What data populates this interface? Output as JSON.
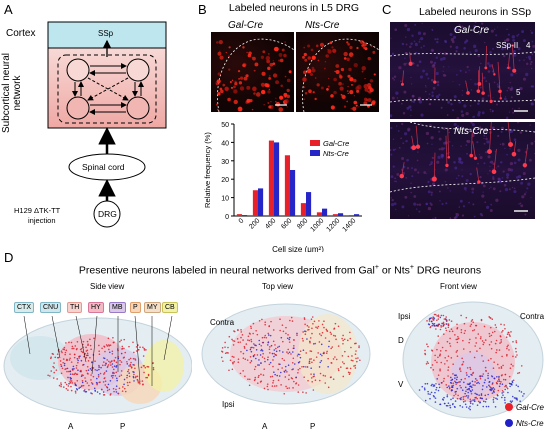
{
  "panel_a": {
    "letter": "A",
    "cortex_label": "Cortex",
    "ssp_box": "SSp",
    "subcortical_label": "Subcortical neural network",
    "spinal_cord": "Spinal cord",
    "drg": "DRG",
    "injection_line1": "H129 ΔTK-TT",
    "injection_line2": "injection",
    "colors": {
      "cortex_fill": "#bde6ee",
      "network_fill": "#f6c6c2"
    }
  },
  "panel_b": {
    "letter": "B",
    "title": "Labeled neurons in L5 DRG",
    "image_labels": [
      "Gal-Cre",
      "Nts-Cre"
    ]
  },
  "panel_c": {
    "letter": "C",
    "title": "Labeled neurons in SSp",
    "top_label": "Gal-Cre",
    "bottom_label": "Nts-Cre",
    "region_label": "SSp-II",
    "layer4": "4",
    "layer5": "5"
  },
  "panel_d": {
    "letter": "D",
    "title_part1": "Presentive neurons labeled in neural networks derived from Gal",
    "title_sup1": "+",
    "title_part2": " or Nts",
    "title_sup2": "+",
    "title_part3": " DRG neurons",
    "side_view": "Side view",
    "top_view": "Top view",
    "front_view": "Front view",
    "regions": [
      "CTX",
      "CNU",
      "TH",
      "HY",
      "MB",
      "P",
      "MY",
      "CB"
    ],
    "region_colors": [
      "#d8ecec",
      "#cfe6ec",
      "#f7d3cf",
      "#f3b9c4",
      "#d9c8e8",
      "#f7d7bb",
      "#f3e0cb",
      "#f3f1a6"
    ],
    "side_axis": [
      "A",
      "P"
    ],
    "top_labels": {
      "contra": "Contra",
      "ipsi": "Ipsi",
      "a": "A",
      "p": "P"
    },
    "front_labels": {
      "ipsi": "Ipsi",
      "contra": "Contra",
      "d": "D",
      "v": "V"
    },
    "legend": [
      {
        "label": "Gal-Cre",
        "color": "#e8202a"
      },
      {
        "label": "Nts-Cre",
        "color": "#2020c8"
      }
    ]
  },
  "chart_data": {
    "type": "bar",
    "ylabel": "Relative frequency (%)",
    "xlabel": "Cell size (μm²)",
    "categories": [
      0,
      200,
      400,
      600,
      800,
      1000,
      1200,
      1400
    ],
    "x_ticks": [
      "0",
      "200",
      "400",
      "600",
      "800",
      "1000",
      "1200",
      "1400"
    ],
    "y_ticks": [
      "0",
      "10",
      "20",
      "30",
      "40",
      "50"
    ],
    "ylim": [
      0,
      50
    ],
    "legend_placement": "top-right",
    "series": [
      {
        "name": "Gal-Cre",
        "color": "#e8202a",
        "values": [
          1,
          14,
          41,
          33,
          7,
          2,
          1,
          0.5
        ]
      },
      {
        "name": "Nts-Cre",
        "color": "#2525c8",
        "values": [
          0.5,
          15,
          40,
          25,
          13,
          4,
          1.5,
          1
        ]
      }
    ]
  }
}
